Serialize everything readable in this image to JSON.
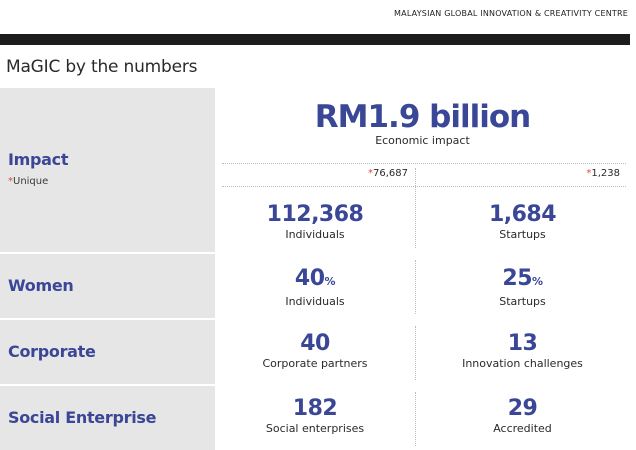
{
  "header": {
    "org": "MALAYSIAN GLOBAL INNOVATION & CREATIVITY CENTRE",
    "title": "MaGIC by the numbers"
  },
  "colors": {
    "accent": "#3a4696",
    "star": "#e0463c",
    "row_label_bg": "#e6e6e6",
    "top_bar": "#1c1c1c"
  },
  "impact": {
    "label": "Impact",
    "star": "*",
    "sub_label": "Unique",
    "hero_value": "RM1.9 billion",
    "hero_caption": "Economic impact",
    "unique_left": "76,687",
    "unique_right": "1,238",
    "left_value": "112,368",
    "left_caption": "Individuals",
    "right_value": "1,684",
    "right_caption": "Startups"
  },
  "women": {
    "label": "Women",
    "left_value": "40",
    "left_unit": "%",
    "left_caption": "Individuals",
    "right_value": "25",
    "right_unit": "%",
    "right_caption": "Startups"
  },
  "corporate": {
    "label": "Corporate",
    "left_value": "40",
    "left_caption": "Corporate partners",
    "right_value": "13",
    "right_caption": "Innovation challenges"
  },
  "social": {
    "label": "Social Enterprise",
    "left_value": "182",
    "left_caption": "Social enterprises",
    "right_value": "29",
    "right_caption": "Accredited"
  }
}
